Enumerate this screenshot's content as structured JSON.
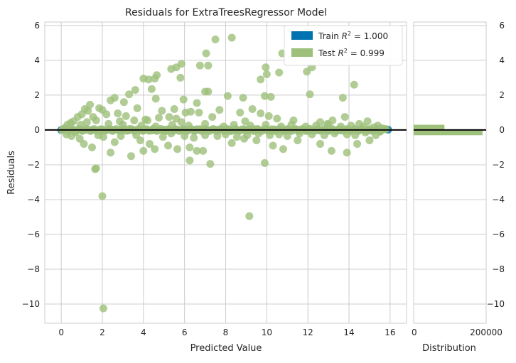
{
  "chart_data": {
    "type": "scatter",
    "title": "Residuals for ExtraTreesRegressor Model",
    "xlabel": "Predicted Value",
    "ylabel": "Residuals",
    "xlim": [
      -0.8,
      16.8
    ],
    "ylim": [
      -11.1,
      6.2
    ],
    "xticks": [
      0,
      2,
      4,
      6,
      8,
      10,
      12,
      14,
      16
    ],
    "yticks": [
      -10,
      -8,
      -6,
      -4,
      -2,
      0,
      2,
      4,
      6
    ],
    "grid": true,
    "legend_position": "top-right",
    "zero_line": 0,
    "colors": {
      "train": "#0072b2",
      "test": "#9dc07b",
      "zero_line": "#111111",
      "grid": "#cccccc",
      "frame": "#cccccc"
    },
    "legend": [
      {
        "label_prefix": "Train ",
        "math": "R",
        "sup": "2",
        "label_suffix": " = 1.000",
        "series": "train"
      },
      {
        "label_prefix": "Test ",
        "math": "R",
        "sup": "2",
        "label_suffix": " = 0.999",
        "series": "test"
      }
    ],
    "series": [
      {
        "name": "train",
        "points": [
          [
            0,
            0
          ],
          [
            0.5,
            0
          ],
          [
            1,
            0
          ],
          [
            1.5,
            0
          ],
          [
            2,
            0
          ],
          [
            2.5,
            0
          ],
          [
            3,
            0
          ],
          [
            3.5,
            0
          ],
          [
            4,
            0
          ],
          [
            4.5,
            0
          ],
          [
            5,
            0
          ],
          [
            5.5,
            0
          ],
          [
            6,
            0
          ],
          [
            6.5,
            0
          ],
          [
            7,
            0
          ],
          [
            7.5,
            0
          ],
          [
            8,
            0
          ],
          [
            8.5,
            0
          ],
          [
            9,
            0
          ],
          [
            9.5,
            0
          ],
          [
            10,
            0
          ],
          [
            10.5,
            0
          ],
          [
            11,
            0
          ],
          [
            11.5,
            0
          ],
          [
            12,
            0
          ],
          [
            12.5,
            0
          ],
          [
            13,
            0
          ],
          [
            13.5,
            0
          ],
          [
            14,
            0
          ],
          [
            14.5,
            0
          ],
          [
            15,
            0
          ],
          [
            15.5,
            0
          ],
          [
            15.9,
            0.02
          ]
        ]
      },
      {
        "name": "test",
        "points": [
          [
            2.05,
            -10.25
          ],
          [
            2.0,
            -3.8
          ],
          [
            1.65,
            -2.25
          ],
          [
            1.7,
            -2.2
          ],
          [
            9.15,
            -4.95
          ],
          [
            8.3,
            5.3
          ],
          [
            7.5,
            5.2
          ],
          [
            7.05,
            4.4
          ],
          [
            10.75,
            4.4
          ],
          [
            6.75,
            3.7
          ],
          [
            5.85,
            3.8
          ],
          [
            5.6,
            3.6
          ],
          [
            5.35,
            3.5
          ],
          [
            7.15,
            3.7
          ],
          [
            9.95,
            3.6
          ],
          [
            10.6,
            3.3
          ],
          [
            11.95,
            3.35
          ],
          [
            4.0,
            2.95
          ],
          [
            4.25,
            2.9
          ],
          [
            4.55,
            2.95
          ],
          [
            4.65,
            3.15
          ],
          [
            10.0,
            3.2
          ],
          [
            12.2,
            3.6
          ],
          [
            9.7,
            2.9
          ],
          [
            5.8,
            3.0
          ],
          [
            7.0,
            2.2
          ],
          [
            4.4,
            2.35
          ],
          [
            3.3,
            2.05
          ],
          [
            3.6,
            2.3
          ],
          [
            8.1,
            1.95
          ],
          [
            8.85,
            1.85
          ],
          [
            9.9,
            1.95
          ],
          [
            10.2,
            1.9
          ],
          [
            12.1,
            2.05
          ],
          [
            13.7,
            1.85
          ],
          [
            14.25,
            2.6
          ],
          [
            4.6,
            1.8
          ],
          [
            5.95,
            1.75
          ],
          [
            6.6,
            1.55
          ],
          [
            7.15,
            2.2
          ],
          [
            2.4,
            1.7
          ],
          [
            2.6,
            1.85
          ],
          [
            3.05,
            1.6
          ],
          [
            3.7,
            1.25
          ],
          [
            1.4,
            1.45
          ],
          [
            1.85,
            1.25
          ],
          [
            2.0,
            1.15
          ],
          [
            1.0,
            0.9
          ],
          [
            1.3,
            1.1
          ],
          [
            1.15,
            1.2
          ],
          [
            0.8,
            0.75
          ],
          [
            0.6,
            0.5
          ],
          [
            0.45,
            0.4
          ],
          [
            0.3,
            0.3
          ],
          [
            4.9,
            1.1
          ],
          [
            5.5,
            1.2
          ],
          [
            6.05,
            1.0
          ],
          [
            6.7,
            1.0
          ],
          [
            6.3,
            1.05
          ],
          [
            7.35,
            0.75
          ],
          [
            7.7,
            1.15
          ],
          [
            8.7,
            1.0
          ],
          [
            9.3,
            1.2
          ],
          [
            9.7,
            0.95
          ],
          [
            10.1,
            0.8
          ],
          [
            10.5,
            0.65
          ],
          [
            11.3,
            0.55
          ],
          [
            12.6,
            0.45
          ],
          [
            13.2,
            0.55
          ],
          [
            13.8,
            0.75
          ],
          [
            14.5,
            0.35
          ],
          [
            14.9,
            0.5
          ],
          [
            15.4,
            0.25
          ],
          [
            4.2,
            0.55
          ],
          [
            4.75,
            0.7
          ],
          [
            5.25,
            0.75
          ],
          [
            5.6,
            0.65
          ],
          [
            3.15,
            0.8
          ],
          [
            3.55,
            0.55
          ],
          [
            2.2,
            0.9
          ],
          [
            2.75,
            0.95
          ],
          [
            0.9,
            -0.5
          ],
          [
            1.1,
            -0.8
          ],
          [
            1.5,
            -1.0
          ],
          [
            2.4,
            -1.3
          ],
          [
            2.6,
            -0.7
          ],
          [
            3.4,
            -1.5
          ],
          [
            4.0,
            -1.2
          ],
          [
            4.3,
            -0.8
          ],
          [
            4.55,
            -1.1
          ],
          [
            5.2,
            -0.9
          ],
          [
            5.65,
            -1.1
          ],
          [
            6.25,
            -1.0
          ],
          [
            6.9,
            -1.2
          ],
          [
            6.25,
            -1.75
          ],
          [
            7.25,
            -1.95
          ],
          [
            6.6,
            -1.2
          ],
          [
            8.3,
            -0.75
          ],
          [
            8.9,
            -0.5
          ],
          [
            9.5,
            -0.6
          ],
          [
            9.9,
            -1.9
          ],
          [
            10.3,
            -0.9
          ],
          [
            10.8,
            -1.1
          ],
          [
            11.5,
            -0.6
          ],
          [
            12.6,
            -0.8
          ],
          [
            13.15,
            -1.2
          ],
          [
            13.9,
            -1.3
          ],
          [
            14.4,
            -0.8
          ],
          [
            15.0,
            -0.6
          ],
          [
            15.3,
            -0.3
          ],
          [
            3.85,
            -0.6
          ],
          [
            2.05,
            -0.4
          ],
          [
            0.25,
            -0.25
          ],
          [
            0.5,
            -0.35
          ],
          [
            0.7,
            -0.15
          ],
          [
            1.8,
            -0.3
          ],
          [
            2.9,
            -0.35
          ],
          [
            3.65,
            -0.3
          ],
          [
            4.95,
            -0.4
          ],
          [
            5.35,
            -0.2
          ],
          [
            6.0,
            -0.35
          ],
          [
            6.45,
            -0.45
          ],
          [
            7.0,
            -0.3
          ],
          [
            7.6,
            -0.35
          ],
          [
            8.0,
            -0.25
          ],
          [
            8.55,
            -0.4
          ],
          [
            9.05,
            -0.3
          ],
          [
            9.6,
            -0.2
          ],
          [
            10.15,
            -0.3
          ],
          [
            10.6,
            -0.25
          ],
          [
            11.0,
            -0.35
          ],
          [
            11.6,
            -0.2
          ],
          [
            12.2,
            -0.25
          ],
          [
            12.8,
            -0.3
          ],
          [
            13.3,
            -0.2
          ],
          [
            13.9,
            -0.25
          ],
          [
            14.3,
            -0.3
          ],
          [
            14.8,
            -0.15
          ],
          [
            15.5,
            -0.1
          ],
          [
            15.8,
            0.05
          ],
          [
            0.15,
            0.1
          ],
          [
            0.95,
            0.3
          ],
          [
            1.25,
            0.45
          ],
          [
            1.7,
            0.55
          ],
          [
            2.3,
            0.35
          ],
          [
            3.0,
            0.3
          ],
          [
            3.9,
            0.25
          ],
          [
            4.6,
            0.2
          ],
          [
            5.4,
            0.3
          ],
          [
            6.2,
            0.25
          ],
          [
            7.0,
            0.35
          ],
          [
            7.9,
            0.2
          ],
          [
            8.4,
            0.3
          ],
          [
            9.2,
            0.25
          ],
          [
            9.95,
            0.3
          ],
          [
            10.7,
            0.2
          ],
          [
            11.2,
            0.3
          ],
          [
            11.9,
            0.2
          ],
          [
            12.4,
            0.25
          ],
          [
            13.0,
            0.3
          ],
          [
            13.6,
            0.2
          ],
          [
            14.1,
            0.25
          ],
          [
            14.7,
            0.2
          ],
          [
            15.2,
            0.15
          ],
          [
            11.4,
            0.05
          ],
          [
            12.0,
            -0.05
          ],
          [
            3.3,
            0.05
          ],
          [
            5.1,
            -0.05
          ],
          [
            6.8,
            0.05
          ],
          [
            8.2,
            -0.05
          ],
          [
            9.4,
            0.05
          ],
          [
            10.3,
            -0.05
          ],
          [
            4.1,
            0.6
          ],
          [
            5.85,
            0.45
          ],
          [
            8.95,
            0.5
          ],
          [
            12.95,
            0.35
          ],
          [
            0.05,
            0.0
          ],
          [
            15.6,
            0.1
          ],
          [
            2.85,
            0.5
          ],
          [
            1.55,
            0.75
          ]
        ]
      }
    ],
    "histogram": {
      "xlabel": "Distribution",
      "xlim": [
        0,
        200000
      ],
      "xticks": [
        0,
        200000
      ],
      "yticks": [
        -10,
        -8,
        -6,
        -4,
        -2,
        0,
        2,
        4,
        6
      ],
      "bars": [
        {
          "y_from": 0,
          "y_to": 0.3,
          "count": 85000,
          "series": "test"
        },
        {
          "y_from": -0.3,
          "y_to": 0,
          "count": 190000,
          "series": "test"
        }
      ]
    }
  }
}
